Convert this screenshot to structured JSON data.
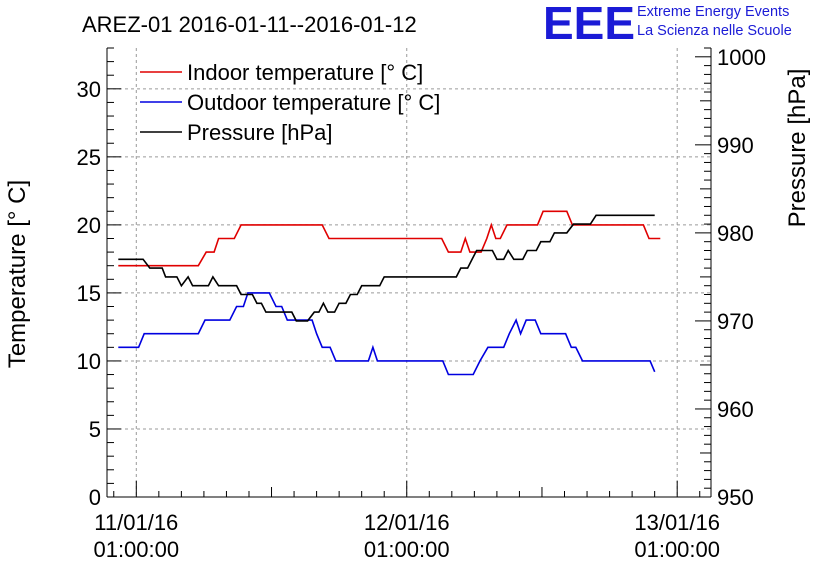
{
  "logo": {
    "letters": "EEE",
    "line1": "Extreme Energy Events",
    "line2": "La Scienza nelle Scuole",
    "color": "#1b1bd6"
  },
  "chart_data": {
    "type": "line",
    "title": "AREZ-01 2016-01-11--2016-01-12",
    "ylabel": "Temperature [° C]",
    "y2label": "Pressure [hPa]",
    "ylim": [
      0,
      33
    ],
    "y2lim": [
      950,
      1001
    ],
    "yticks": [
      0,
      5,
      10,
      15,
      20,
      25,
      30
    ],
    "y2ticks": [
      950,
      960,
      970,
      980,
      990,
      1000
    ],
    "x_unit": "hours since 11/01/16 01:00:00",
    "xlim": [
      -2.6,
      51.0
    ],
    "xticks": [
      {
        "x": 0,
        "line1": "11/01/16",
        "line2": "01:00:00"
      },
      {
        "x": 24,
        "line1": "12/01/16",
        "line2": "01:00:00"
      },
      {
        "x": 48,
        "line1": "13/01/16",
        "line2": "01:00:00"
      }
    ],
    "grid": true,
    "legend": "top-left",
    "series": [
      {
        "name": "Indoor temperature [° C]",
        "axis": "left",
        "color": "#e00000",
        "points": [
          [
            -1.6,
            17
          ],
          [
            -0.5,
            17
          ],
          [
            5.5,
            17
          ],
          [
            6.2,
            18
          ],
          [
            6.9,
            18
          ],
          [
            7.3,
            19
          ],
          [
            8.7,
            19
          ],
          [
            9.3,
            20
          ],
          [
            16.5,
            20
          ],
          [
            17.1,
            19
          ],
          [
            27.1,
            19
          ],
          [
            27.7,
            18
          ],
          [
            28.8,
            18
          ],
          [
            29.2,
            19
          ],
          [
            29.6,
            18
          ],
          [
            30.6,
            18
          ],
          [
            31.1,
            19
          ],
          [
            31.5,
            20
          ],
          [
            31.9,
            19
          ],
          [
            32.3,
            19
          ],
          [
            32.9,
            20
          ],
          [
            35.6,
            20
          ],
          [
            36.1,
            21
          ],
          [
            38.2,
            21
          ],
          [
            38.7,
            20
          ],
          [
            45.0,
            20
          ],
          [
            45.5,
            19
          ],
          [
            46.5,
            19
          ]
        ]
      },
      {
        "name": "Outdoor temperature [° C]",
        "axis": "left",
        "color": "#0000e0",
        "points": [
          [
            -1.6,
            11
          ],
          [
            0.2,
            11
          ],
          [
            0.7,
            12
          ],
          [
            5.5,
            12
          ],
          [
            6.1,
            13
          ],
          [
            8.3,
            13
          ],
          [
            8.9,
            14
          ],
          [
            9.5,
            14
          ],
          [
            9.9,
            15
          ],
          [
            11.8,
            15
          ],
          [
            12.4,
            14
          ],
          [
            12.9,
            14
          ],
          [
            13.4,
            13
          ],
          [
            15.6,
            13
          ],
          [
            16.0,
            12
          ],
          [
            16.5,
            11
          ],
          [
            17.2,
            11
          ],
          [
            17.7,
            10
          ],
          [
            20.6,
            10
          ],
          [
            21.0,
            11
          ],
          [
            21.4,
            10
          ],
          [
            27.2,
            10
          ],
          [
            27.7,
            9
          ],
          [
            29.9,
            9
          ],
          [
            30.5,
            10
          ],
          [
            31.2,
            11
          ],
          [
            32.6,
            11
          ],
          [
            33.1,
            12
          ],
          [
            33.7,
            13
          ],
          [
            34.1,
            12
          ],
          [
            34.6,
            13
          ],
          [
            35.4,
            13
          ],
          [
            35.9,
            12
          ],
          [
            38.1,
            12
          ],
          [
            38.6,
            11
          ],
          [
            39.0,
            11
          ],
          [
            39.6,
            10
          ],
          [
            45.6,
            10
          ],
          [
            46.0,
            9.2
          ]
        ]
      },
      {
        "name": "Pressure [hPa]",
        "axis": "right",
        "color": "#000000",
        "points": [
          [
            -1.6,
            977
          ],
          [
            0.6,
            977
          ],
          [
            1.2,
            976
          ],
          [
            2.3,
            976
          ],
          [
            2.6,
            975
          ],
          [
            3.6,
            975
          ],
          [
            4.0,
            974
          ],
          [
            4.6,
            975
          ],
          [
            5.0,
            974
          ],
          [
            6.4,
            974
          ],
          [
            6.8,
            975
          ],
          [
            7.3,
            974
          ],
          [
            8.9,
            974
          ],
          [
            9.3,
            973
          ],
          [
            10.3,
            973
          ],
          [
            10.7,
            972
          ],
          [
            11.1,
            972
          ],
          [
            11.5,
            971
          ],
          [
            13.8,
            971
          ],
          [
            14.2,
            970
          ],
          [
            15.2,
            970
          ],
          [
            15.8,
            971
          ],
          [
            16.2,
            971
          ],
          [
            16.6,
            972
          ],
          [
            17.0,
            971
          ],
          [
            17.6,
            971
          ],
          [
            18.0,
            972
          ],
          [
            18.6,
            972
          ],
          [
            19.0,
            973
          ],
          [
            19.6,
            973
          ],
          [
            20.0,
            974
          ],
          [
            21.6,
            974
          ],
          [
            22.0,
            975
          ],
          [
            28.4,
            975
          ],
          [
            28.8,
            976
          ],
          [
            29.4,
            976
          ],
          [
            29.8,
            977
          ],
          [
            30.2,
            978
          ],
          [
            31.6,
            978
          ],
          [
            32.0,
            977
          ],
          [
            32.6,
            977
          ],
          [
            33.0,
            978
          ],
          [
            33.5,
            977
          ],
          [
            34.3,
            977
          ],
          [
            34.7,
            978
          ],
          [
            35.5,
            978
          ],
          [
            35.9,
            979
          ],
          [
            36.7,
            979
          ],
          [
            37.1,
            980
          ],
          [
            38.2,
            980
          ],
          [
            38.8,
            981
          ],
          [
            40.3,
            981
          ],
          [
            40.8,
            982
          ],
          [
            46.0,
            982
          ]
        ]
      }
    ]
  }
}
